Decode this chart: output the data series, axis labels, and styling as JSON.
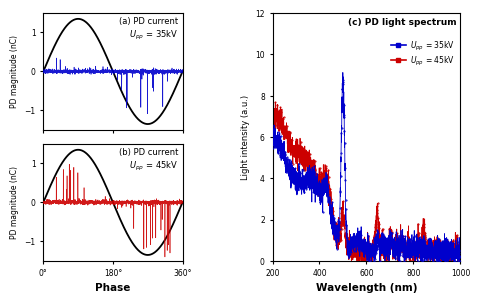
{
  "fig_width": 4.74,
  "fig_height": 2.95,
  "dpi": 100,
  "sine_color": "black",
  "pd_35_color": "#0000CC",
  "pd_45_color": "#CC0000",
  "subplot_a_title": "(a) PD current\n$U_{pp}$ = 35kV",
  "subplot_b_title": "(b) PD current\n$U_{pp}$ = 45kV",
  "subplot_c_title": "(c) PD light spectrum",
  "xlabel_phase": "Phase",
  "ylabel_pd": "PD magnitude (nC)",
  "xlabel_wave": "Wavelength (nm)",
  "ylabel_light": "Light intensity (a.u.)",
  "legend_35": "$U_{pp}$ = 35kV",
  "legend_45": "$U_{pp}$ = 45kV",
  "ylim_pd": [
    -1.5,
    1.5
  ],
  "ylim_light": [
    0,
    12
  ],
  "xlim_wave": [
    200,
    1000
  ],
  "phase_ticks": [
    0,
    180,
    360
  ],
  "phase_tick_labels": [
    "0°",
    "180°",
    "360°"
  ],
  "wave_ticks": [
    200,
    400,
    600,
    800,
    1000
  ],
  "light_ticks": [
    0,
    2,
    4,
    6,
    8,
    10,
    12
  ]
}
